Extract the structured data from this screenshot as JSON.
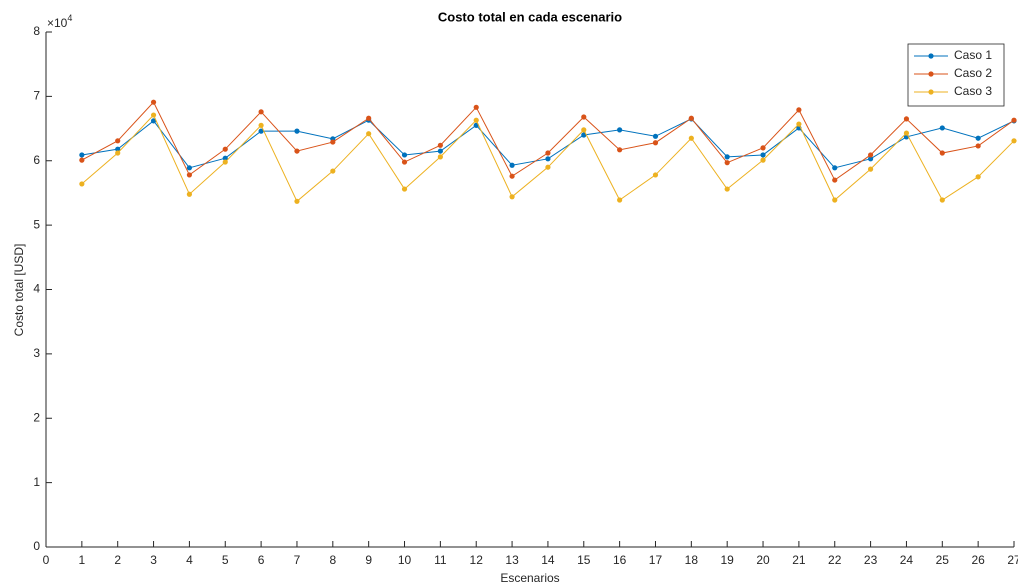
{
  "chart_data": {
    "type": "line",
    "title": "Costo total en cada escenario",
    "xlabel": "Escenarios",
    "ylabel": "Costo total [USD]",
    "yexponent_base": "×10",
    "yexponent_power": "4",
    "x": [
      1,
      2,
      3,
      4,
      5,
      6,
      7,
      8,
      9,
      10,
      11,
      12,
      13,
      14,
      15,
      16,
      17,
      18,
      19,
      20,
      21,
      22,
      23,
      24,
      25,
      26,
      27
    ],
    "series": [
      {
        "name": "Caso 1",
        "color": "#0072BD",
        "values": [
          6.09,
          6.18,
          6.62,
          5.89,
          6.04,
          6.46,
          6.46,
          6.34,
          6.63,
          6.09,
          6.15,
          6.55,
          5.93,
          6.03,
          6.4,
          6.48,
          6.38,
          6.65,
          6.06,
          6.09,
          6.51,
          5.89,
          6.03,
          6.37,
          6.51,
          6.35,
          6.62
        ]
      },
      {
        "name": "Caso 2",
        "color": "#D95319",
        "values": [
          6.01,
          6.31,
          6.91,
          5.78,
          6.18,
          6.76,
          6.15,
          6.29,
          6.66,
          5.98,
          6.24,
          6.83,
          5.76,
          6.12,
          6.68,
          6.17,
          6.28,
          6.66,
          5.97,
          6.2,
          6.79,
          5.7,
          6.09,
          6.65,
          6.12,
          6.23,
          6.63
        ]
      },
      {
        "name": "Caso 3",
        "color": "#EDB120",
        "values": [
          5.64,
          6.12,
          6.71,
          5.48,
          5.98,
          6.55,
          5.37,
          5.84,
          6.42,
          5.56,
          6.06,
          6.63,
          5.44,
          5.9,
          6.48,
          5.39,
          5.78,
          6.35,
          5.56,
          6.01,
          6.57,
          5.39,
          5.87,
          6.43,
          5.39,
          5.75,
          6.31
        ]
      }
    ],
    "xlim": [
      0,
      27
    ],
    "xticks": [
      0,
      1,
      2,
      3,
      4,
      5,
      6,
      7,
      8,
      9,
      10,
      11,
      12,
      13,
      14,
      15,
      16,
      17,
      18,
      19,
      20,
      21,
      22,
      23,
      24,
      25,
      26,
      27
    ],
    "ylim": [
      0,
      8
    ],
    "yticks": [
      0,
      1,
      2,
      3,
      4,
      5,
      6,
      7,
      8
    ],
    "legend": "northeast"
  }
}
